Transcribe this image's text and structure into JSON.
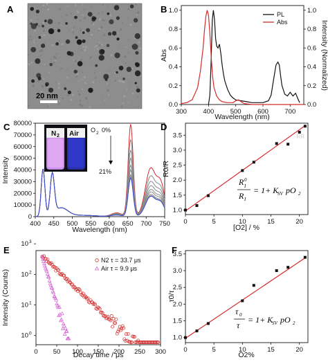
{
  "panels": {
    "A": {
      "letter": "A",
      "scalebar": "20 nm"
    },
    "B": {
      "letter": "B"
    },
    "C": {
      "letter": "C",
      "inset_left": "N",
      "inset_left_sub": "2",
      "inset_right": "Air",
      "o2_label": "O",
      "o2_sub": "2",
      "o2_top": "0%",
      "o2_bottom": "21%"
    },
    "D": {
      "letter": "D",
      "watermark": "RR"
    },
    "E": {
      "letter": "E"
    },
    "F": {
      "letter": "F"
    }
  },
  "colors": {
    "red": "#d42a2a",
    "black": "#111111",
    "pink": "#d666d6",
    "blue": "#3a4ad8",
    "gray": "#8a8a8a"
  },
  "chart_data": [
    {
      "type": "line",
      "panel": "B",
      "xlabel": "Wavelength (nm)",
      "ylabel": "Abs",
      "y2label": "Intensity (Normalized)",
      "xlim": [
        300,
        750
      ],
      "ylim": [
        0,
        1.05
      ],
      "y2lim": [
        0,
        1.05
      ],
      "xticks": [
        300,
        400,
        500,
        600,
        700
      ],
      "yticks": [
        "0.0",
        "0.2",
        "0.4",
        "0.6",
        "0.8",
        "1.0"
      ],
      "y2ticks": [
        "0.0",
        "0.2",
        "0.4",
        "0.6",
        "0.8",
        "1.0"
      ],
      "series": [
        {
          "name": "PL",
          "color": "#111111",
          "x": [
            400,
            405,
            410,
            414,
            418,
            422,
            426,
            430,
            435,
            440,
            445,
            450,
            455,
            460,
            470,
            480,
            490,
            500,
            520,
            540,
            560,
            580,
            600,
            620,
            630,
            640,
            648,
            655,
            660,
            665,
            670,
            680,
            690,
            700,
            710,
            720,
            730,
            735
          ],
          "y": [
            0.0,
            0.1,
            0.5,
            0.9,
            1.0,
            0.9,
            0.7,
            0.62,
            0.6,
            0.64,
            0.55,
            0.42,
            0.32,
            0.25,
            0.16,
            0.1,
            0.07,
            0.05,
            0.04,
            0.03,
            0.02,
            0.02,
            0.02,
            0.04,
            0.1,
            0.28,
            0.42,
            0.45,
            0.42,
            0.3,
            0.2,
            0.11,
            0.09,
            0.13,
            0.09,
            0.12,
            0.05,
            0.02
          ]
        },
        {
          "name": "Abs",
          "color": "#d42a2a",
          "x": [
            300,
            320,
            340,
            360,
            370,
            380,
            385,
            390,
            395,
            400,
            405,
            410,
            415,
            420,
            430,
            440,
            450,
            470,
            490,
            500,
            510,
            520,
            530,
            560,
            600,
            650,
            700,
            750
          ],
          "y": [
            0.01,
            0.02,
            0.05,
            0.18,
            0.35,
            0.6,
            0.78,
            0.93,
            1.0,
            0.95,
            0.75,
            0.5,
            0.3,
            0.18,
            0.09,
            0.05,
            0.03,
            0.02,
            0.02,
            0.04,
            0.05,
            0.03,
            0.01,
            0.0,
            0.0,
            0.0,
            0.0,
            0.0
          ]
        }
      ]
    },
    {
      "type": "line",
      "panel": "C",
      "xlabel": "Wavelength (nm)",
      "ylabel": "Intensity",
      "xlim": [
        400,
        750
      ],
      "ylim": [
        0,
        80000
      ],
      "xticks": [
        400,
        450,
        500,
        550,
        600,
        650,
        700,
        750
      ],
      "yticks": [
        0,
        10000,
        20000,
        30000,
        40000,
        50000,
        60000,
        70000,
        80000
      ],
      "peak_heights": [
        79000,
        66000,
        57000,
        50000,
        44000,
        40000,
        36000,
        34000,
        33000
      ],
      "series_colors": [
        "#d42a2a",
        "#8a8a8a",
        "#8a8a8a",
        "#8a8a8a",
        "#8a8a8a",
        "#8a8a8a",
        "#8a8a8a",
        "#8a8a8a",
        "#3a4ad8"
      ]
    },
    {
      "type": "scatter",
      "panel": "D",
      "xlabel": "[O2] / %",
      "ylabel": "R0/R",
      "xlim": [
        0,
        21.5
      ],
      "ylim": [
        0.85,
        3.9
      ],
      "xticks": [
        0,
        5,
        10,
        15,
        20
      ],
      "yticks": [
        "1.0",
        "1.5",
        "2.0",
        "2.5",
        "3.0",
        "3.5"
      ],
      "x": [
        0,
        2,
        4,
        10,
        12,
        16,
        18,
        20,
        21
      ],
      "y": [
        1.0,
        1.15,
        1.48,
        2.32,
        2.6,
        3.22,
        3.2,
        3.6,
        3.8
      ],
      "fit": {
        "x": [
          0,
          21
        ],
        "y": [
          0.97,
          3.82
        ]
      },
      "equation": {
        "lhs_num": "R",
        "lhs_num_sup": "0",
        "lhs_num_sub": "I",
        "lhs_den": "R",
        "lhs_den_sub": "I",
        "rhs": "= 1+ K",
        "rhs_sub": "SV",
        "rhs_tail": "pO",
        "rhs_tail_sub": "2"
      }
    },
    {
      "type": "scatter",
      "panel": "E",
      "xlabel": "Decay time / μs",
      "ylabel": "Intensity (Counts)",
      "yscale": "log",
      "xlim": [
        0,
        300
      ],
      "ylim": [
        0.5,
        600
      ],
      "xticks": [
        0,
        50,
        100,
        150,
        200,
        250,
        300
      ],
      "yticks": [
        "10^0",
        "10^1",
        "10^2",
        "10^3"
      ],
      "series": [
        {
          "name": "N2",
          "label": "N2   τ = 33.7 μs",
          "color": "#d42a2a",
          "tau": 33.7,
          "x_range": [
            15,
            295
          ]
        },
        {
          "name": "Air",
          "label": "Air  τ = 9.9 μs",
          "color": "#d666d6",
          "tau": 9.9,
          "x_range": [
            15,
            80
          ]
        }
      ]
    },
    {
      "type": "scatter",
      "panel": "F",
      "xlabel": "O2%",
      "ylabel": "τ0/τ",
      "xlim": [
        0,
        21.5
      ],
      "ylim": [
        0.85,
        3.6
      ],
      "xticks": [
        0,
        5,
        10,
        15,
        20
      ],
      "yticks": [
        "1.0",
        "1.5",
        "2.0",
        "2.5",
        "3.0",
        "3.5"
      ],
      "x": [
        0,
        2,
        4,
        10,
        12,
        16,
        18,
        21
      ],
      "y": [
        1.0,
        1.2,
        1.42,
        2.1,
        2.56,
        3.0,
        3.1,
        3.4
      ],
      "fit": {
        "x": [
          0,
          21
        ],
        "y": [
          0.98,
          3.38
        ]
      },
      "equation": {
        "lhs_num": "τ",
        "lhs_num_sub": "0",
        "lhs_den": "τ",
        "rhs": "= 1+ K",
        "rhs_sub": "SV",
        "rhs_tail": "pO",
        "rhs_tail_sub": "2"
      }
    }
  ]
}
